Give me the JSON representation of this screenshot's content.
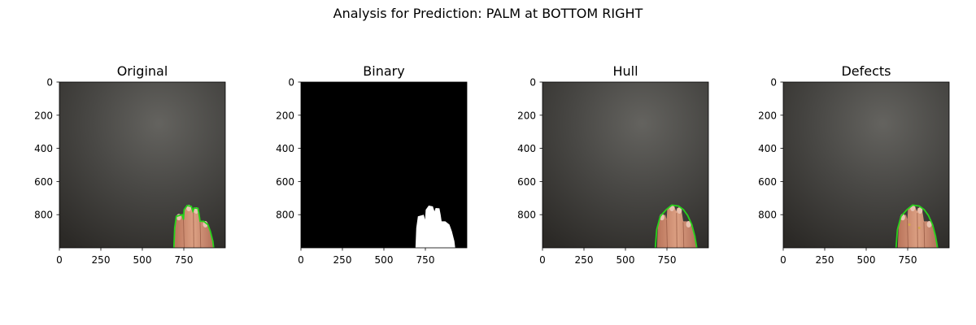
{
  "figure": {
    "suptitle": "Analysis for Prediction: PALM at BOTTOM RIGHT"
  },
  "colors": {
    "background_dark": "#3b3a37",
    "contour_green": "#27d21b",
    "skin": "#d08f70",
    "binary_foreground": "#ffffff",
    "binary_background": "#000000"
  },
  "chart_data": [
    {
      "type": "image",
      "title": "Original",
      "content": "photo-with-contour",
      "xlim": [
        0,
        1000
      ],
      "ylim": [
        1000,
        0
      ],
      "xticks": [
        0,
        250,
        500,
        750
      ],
      "yticks": [
        0,
        200,
        400,
        600,
        800
      ]
    },
    {
      "type": "image",
      "title": "Binary",
      "content": "binary-mask",
      "xlim": [
        0,
        1000
      ],
      "ylim": [
        1000,
        0
      ],
      "xticks": [
        0,
        250,
        500,
        750
      ],
      "yticks": [
        0,
        200,
        400,
        600,
        800
      ]
    },
    {
      "type": "image",
      "title": "Hull",
      "content": "photo-with-hull",
      "xlim": [
        0,
        1000
      ],
      "ylim": [
        1000,
        0
      ],
      "xticks": [
        0,
        250,
        500,
        750
      ],
      "yticks": [
        0,
        200,
        400,
        600,
        800
      ]
    },
    {
      "type": "image",
      "title": "Defects",
      "content": "photo-with-defects",
      "xlim": [
        0,
        1000
      ],
      "ylim": [
        1000,
        0
      ],
      "xticks": [
        0,
        250,
        500,
        750
      ],
      "yticks": [
        0,
        200,
        400,
        600,
        800
      ]
    }
  ]
}
